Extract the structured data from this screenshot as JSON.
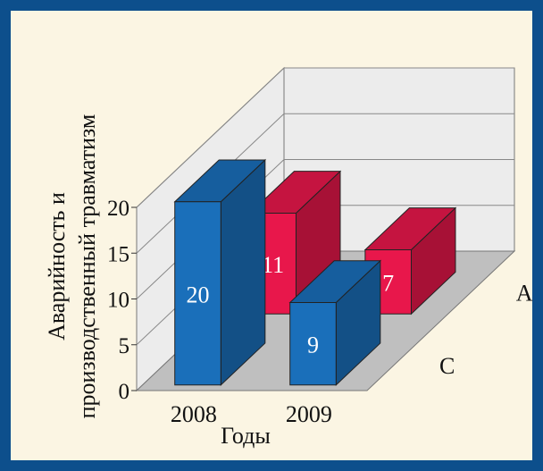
{
  "chart_data": {
    "type": "bar",
    "categories": [
      "2008",
      "2009"
    ],
    "series": [
      {
        "name": "A",
        "values": [
          11,
          7
        ],
        "color": "#e8174b"
      },
      {
        "name": "C",
        "values": [
          20,
          9
        ],
        "color": "#1a6fba"
      }
    ],
    "xlabel": "Годы",
    "ylabel_lines": [
      "Аварийность и",
      "производственный травматизм"
    ],
    "yticks": [
      0,
      5,
      10,
      15,
      20
    ],
    "ylim": [
      0,
      20
    ],
    "grid": true,
    "colors": {
      "background": "#fbf5e3",
      "frame": "#0d4f8c",
      "floor": "#bfbfbf",
      "wall": "#ececec"
    }
  }
}
